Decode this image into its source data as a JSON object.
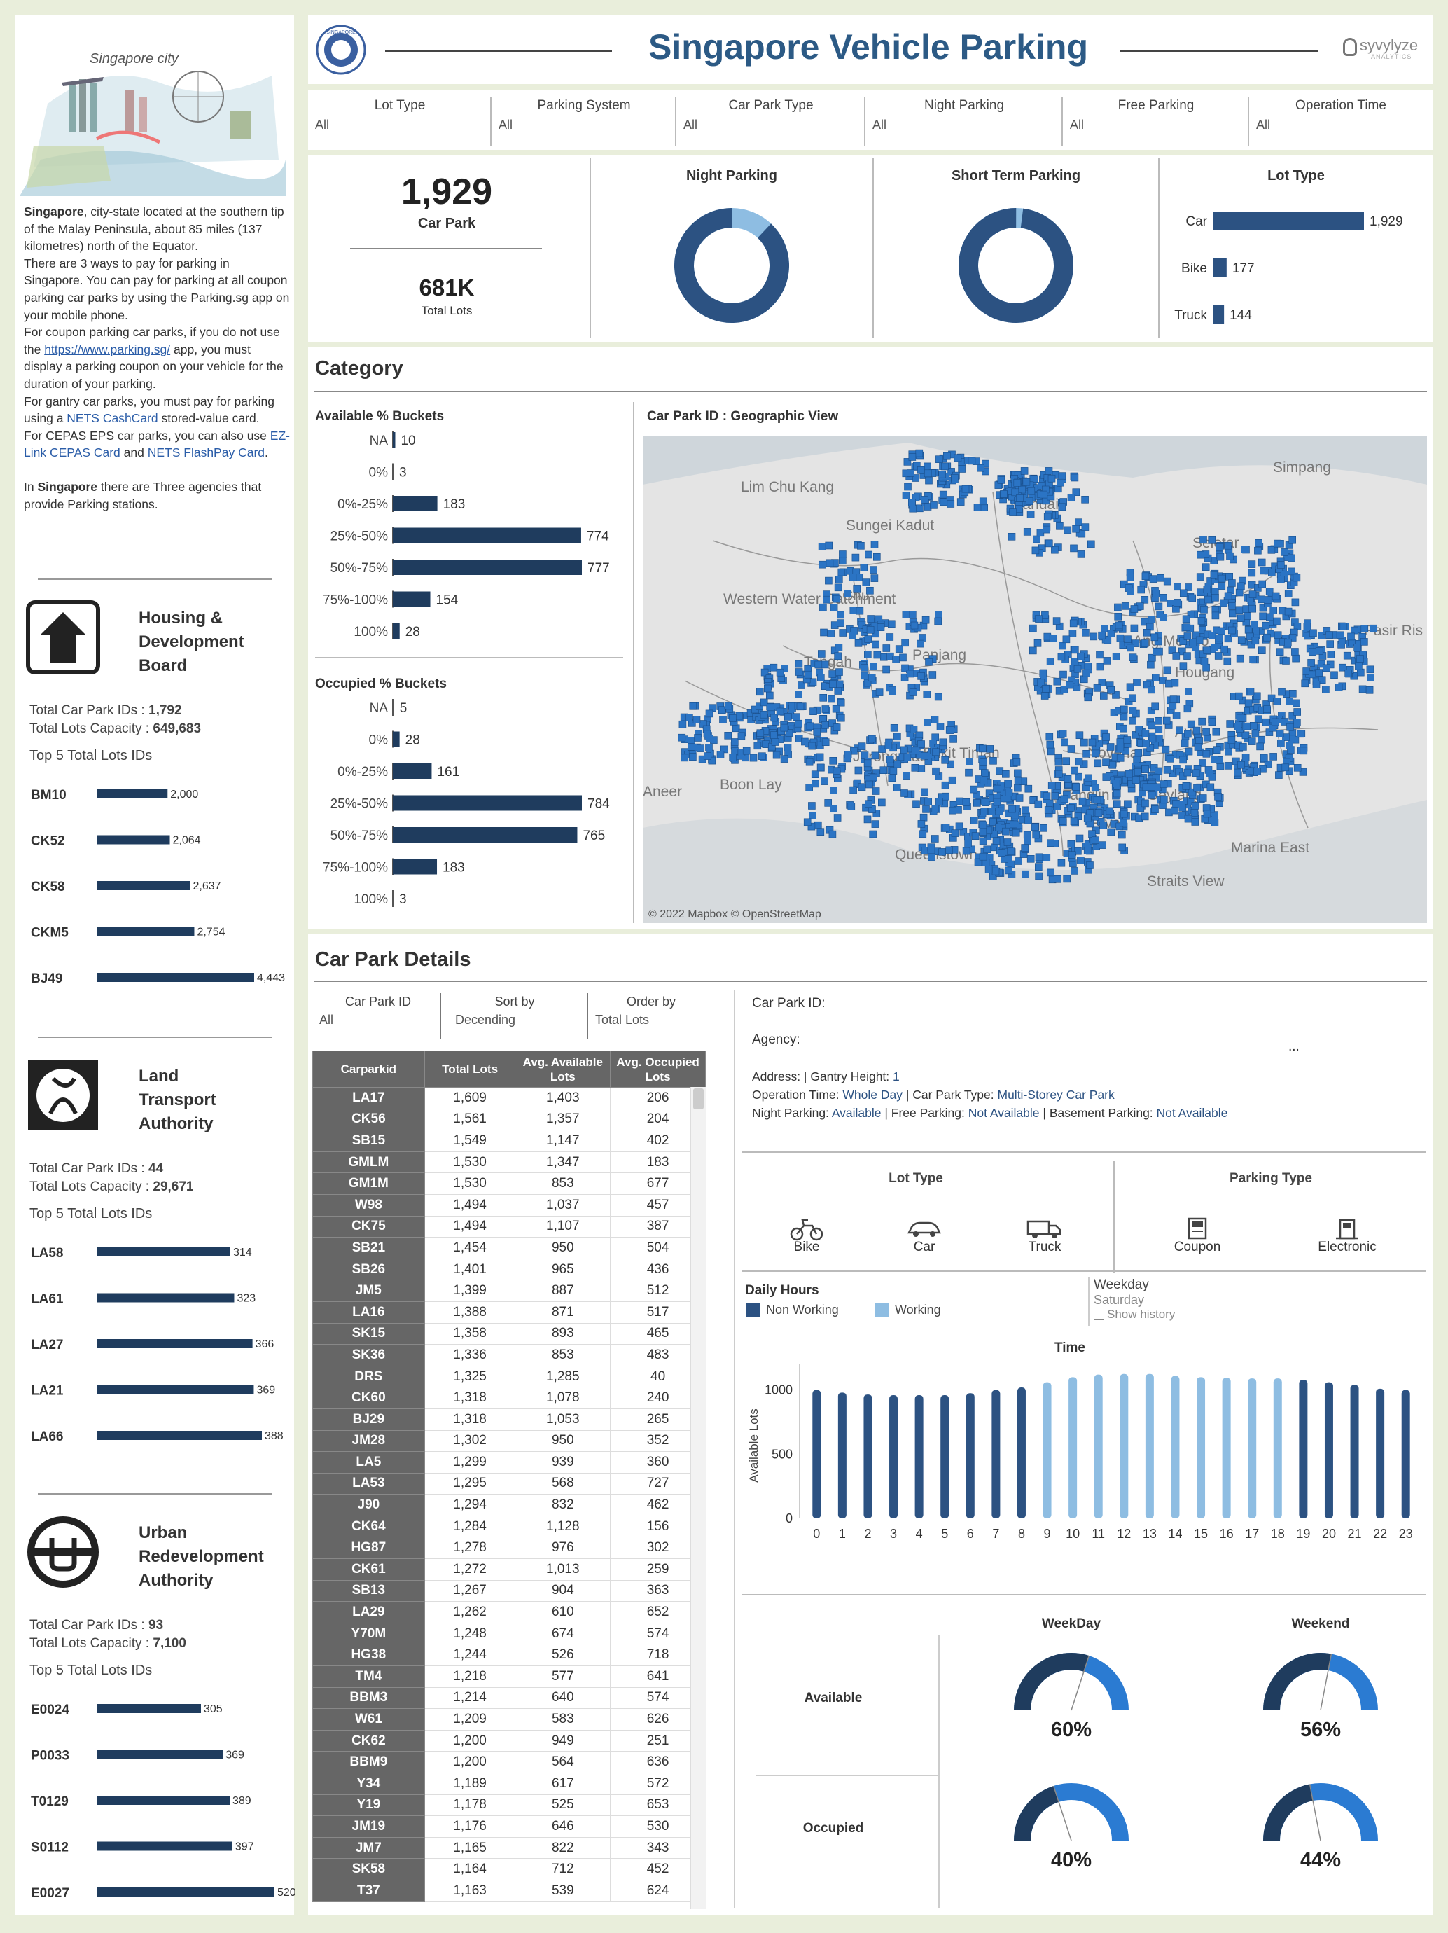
{
  "header": {
    "title": "Singapore Vehicle Parking",
    "brand": "syvylyze",
    "brand_sub": "ANALYTICS",
    "seal_text": "SINGAPORE"
  },
  "colors": {
    "accent": "#2c5282",
    "light": "#8ebde2",
    "map_dot": "#2b74c4",
    "bar_dark": "#1f3c5e"
  },
  "left": {
    "image_caption": "Singapore city",
    "intro_city": "Singapore",
    "intro_1": ", city-state located at the southern tip of the Malay Peninsula, about 85 miles (137 kilometres) north of the Equator.",
    "intro_2": "There are 3 ways to pay for parking in Singapore. You can pay for parking at all coupon parking car parks by using the Parking.sg app on your mobile phone.",
    "intro_3a": "For coupon parking car parks, if you do not use the ",
    "intro_3_link": "https://www.parking.sg/",
    "intro_3b": " app, you must display a parking coupon on your vehicle for the duration of your parking.",
    "intro_4a": "For gantry car parks, you must pay for parking using a ",
    "intro_4_link": "NETS CashCard",
    "intro_4b": " stored-value card.",
    "intro_5": "For CEPAS EPS car parks, you can also use ",
    "intro_5_link1": "EZ-Link CEPAS Card",
    "intro_5_and": " and ",
    "intro_5_link2": "NETS FlashPay Card",
    "intro_5_end": ".",
    "intro_6a": "In ",
    "intro_6_city": "Singapore",
    "intro_6b": " there are Three agencies that provide Parking stations.",
    "total_ids_label": "Total Car Park IDs : ",
    "total_cap_label": "Total Lots Capacity : ",
    "top5_label": "Top 5 Total Lots IDs",
    "agencies": [
      {
        "name": "Housing & Development Board",
        "line1": "Housing &",
        "line2": "Development",
        "line3": "Board",
        "ids": "1,792",
        "capacity": "649,683",
        "top5": [
          {
            "id": "BM10",
            "value": 2000,
            "label": "2,000"
          },
          {
            "id": "CK52",
            "value": 2064,
            "label": "2,064"
          },
          {
            "id": "CK58",
            "value": 2637,
            "label": "2,637"
          },
          {
            "id": "CKM5",
            "value": 2754,
            "label": "2,754"
          },
          {
            "id": "BJ49",
            "value": 4443,
            "label": "4,443"
          }
        ]
      },
      {
        "name": "Land Transport Authority",
        "line1": "Land",
        "line2": "Transport",
        "line3": "Authority",
        "ids": "44",
        "capacity": "29,671",
        "top5": [
          {
            "id": "LA58",
            "value": 314,
            "label": "314"
          },
          {
            "id": "LA61",
            "value": 323,
            "label": "323"
          },
          {
            "id": "LA27",
            "value": 366,
            "label": "366"
          },
          {
            "id": "LA21",
            "value": 369,
            "label": "369"
          },
          {
            "id": "LA66",
            "value": 388,
            "label": "388"
          }
        ]
      },
      {
        "name": "Urban Redevelopment Authority",
        "line1": "Urban",
        "line2": "Redevelopment",
        "line3": "Authority",
        "ids": "93",
        "capacity": "7,100",
        "top5": [
          {
            "id": "E0024",
            "value": 305,
            "label": "305"
          },
          {
            "id": "P0033",
            "value": 369,
            "label": "369"
          },
          {
            "id": "T0129",
            "value": 389,
            "label": "389"
          },
          {
            "id": "S0112",
            "value": 397,
            "label": "397"
          },
          {
            "id": "E0027",
            "value": 520,
            "label": "520"
          }
        ]
      }
    ]
  },
  "filters": [
    {
      "label": "Lot Type",
      "value": "All"
    },
    {
      "label": "Parking System",
      "value": "All"
    },
    {
      "label": "Car Park Type",
      "value": "All"
    },
    {
      "label": "Night Parking",
      "value": "All"
    },
    {
      "label": "Free Parking",
      "value": "All"
    },
    {
      "label": "Operation Time",
      "value": "All"
    }
  ],
  "kpi": {
    "car_park_value": "1,929",
    "car_park_label": "Car Park",
    "lots_value": "681K",
    "lots_label": "Total Lots"
  },
  "donuts": [
    {
      "title": "Night Parking",
      "share": 0.88
    },
    {
      "title": "Short Term Parking",
      "share": 0.98
    }
  ],
  "lot_type": {
    "title": "Lot Type",
    "items": [
      {
        "name": "Car",
        "value": 1929,
        "label": "1,929"
      },
      {
        "name": "Bike",
        "value": 177,
        "label": "177"
      },
      {
        "name": "Truck",
        "value": 144,
        "label": "144"
      }
    ]
  },
  "category": {
    "title": "Category",
    "available_title": "Available % Buckets",
    "occupied_title": "Occupied % Buckets",
    "available": [
      {
        "b": "NA",
        "v": 10
      },
      {
        "b": "0%",
        "v": 3
      },
      {
        "b": "0%-25%",
        "v": 183
      },
      {
        "b": "25%-50%",
        "v": 774
      },
      {
        "b": "50%-75%",
        "v": 777
      },
      {
        "b": "75%-100%",
        "v": 154
      },
      {
        "b": "100%",
        "v": 28
      }
    ],
    "occupied": [
      {
        "b": "NA",
        "v": 5
      },
      {
        "b": "0%",
        "v": 28
      },
      {
        "b": "0%-25%",
        "v": 161
      },
      {
        "b": "25%-50%",
        "v": 784
      },
      {
        "b": "50%-75%",
        "v": 765
      },
      {
        "b": "75%-100%",
        "v": 183
      },
      {
        "b": "100%",
        "v": 3
      }
    ],
    "map_title": "Car Park ID : Geographic View",
    "map_credit": "© 2022 Mapbox © OpenStreetMap",
    "map_labels": [
      "Simpang",
      "Lim Chu Kang",
      "Mandai",
      "Sungei Kadut",
      "Seletar",
      "Western Water Catchment",
      "Chu",
      "Tengah",
      "Panjang",
      "Hougang",
      "Pasir Ris",
      "Jurong East",
      "Bukit Timah",
      "Novena",
      "Boon Lay",
      "Tanglin",
      "River",
      "Queenstown",
      "Marina East",
      "Straits View",
      "Ayoh",
      "Geylang",
      "Aneer",
      "Ang Mo Kio"
    ]
  },
  "details": {
    "title": "Car Park Details",
    "filters": [
      {
        "label": "Car Park ID",
        "value": "All"
      },
      {
        "label": "Sort by",
        "value": "Decending"
      },
      {
        "label": "Order by",
        "value": "Total Lots"
      }
    ],
    "columns": [
      "Carparkid",
      "Total Lots",
      "Avg. Available Lots",
      "Avg. Occupied Lots"
    ],
    "rows": [
      [
        "LA17",
        "1,609",
        "1,403",
        "206"
      ],
      [
        "CK56",
        "1,561",
        "1,357",
        "204"
      ],
      [
        "SB15",
        "1,549",
        "1,147",
        "402"
      ],
      [
        "GMLM",
        "1,530",
        "1,347",
        "183"
      ],
      [
        "GM1M",
        "1,530",
        "853",
        "677"
      ],
      [
        "W98",
        "1,494",
        "1,037",
        "457"
      ],
      [
        "CK75",
        "1,494",
        "1,107",
        "387"
      ],
      [
        "SB21",
        "1,454",
        "950",
        "504"
      ],
      [
        "SB26",
        "1,401",
        "965",
        "436"
      ],
      [
        "JM5",
        "1,399",
        "887",
        "512"
      ],
      [
        "LA16",
        "1,388",
        "871",
        "517"
      ],
      [
        "SK15",
        "1,358",
        "893",
        "465"
      ],
      [
        "SK36",
        "1,336",
        "853",
        "483"
      ],
      [
        "DRS",
        "1,325",
        "1,285",
        "40"
      ],
      [
        "CK60",
        "1,318",
        "1,078",
        "240"
      ],
      [
        "BJ29",
        "1,318",
        "1,053",
        "265"
      ],
      [
        "JM28",
        "1,302",
        "950",
        "352"
      ],
      [
        "LA5",
        "1,299",
        "939",
        "360"
      ],
      [
        "LA53",
        "1,295",
        "568",
        "727"
      ],
      [
        "J90",
        "1,294",
        "832",
        "462"
      ],
      [
        "CK64",
        "1,284",
        "1,128",
        "156"
      ],
      [
        "HG87",
        "1,278",
        "976",
        "302"
      ],
      [
        "CK61",
        "1,272",
        "1,013",
        "259"
      ],
      [
        "SB13",
        "1,267",
        "904",
        "363"
      ],
      [
        "LA29",
        "1,262",
        "610",
        "652"
      ],
      [
        "Y70M",
        "1,248",
        "674",
        "574"
      ],
      [
        "HG38",
        "1,244",
        "526",
        "718"
      ],
      [
        "TM4",
        "1,218",
        "577",
        "641"
      ],
      [
        "BBM3",
        "1,214",
        "640",
        "574"
      ],
      [
        "W61",
        "1,209",
        "583",
        "626"
      ],
      [
        "CK62",
        "1,200",
        "949",
        "251"
      ],
      [
        "BBM9",
        "1,200",
        "564",
        "636"
      ],
      [
        "Y34",
        "1,189",
        "617",
        "572"
      ],
      [
        "Y19",
        "1,178",
        "525",
        "653"
      ],
      [
        "JM19",
        "1,176",
        "646",
        "530"
      ],
      [
        "JM7",
        "1,165",
        "822",
        "343"
      ],
      [
        "SK58",
        "1,164",
        "712",
        "452"
      ],
      [
        "T37",
        "1,163",
        "539",
        "624"
      ]
    ],
    "car_park_id_label": "Car Park ID:",
    "agency_label": "Agency:",
    "ellipsis": "...",
    "address_line": {
      "a": "Address:  | Gantry Height: ",
      "gantry": "1"
    },
    "op_time_label": "Operation Time: ",
    "op_time": "Whole Day",
    "cp_type_label": " | Car Park Type: ",
    "cp_type": "Multi-Storey Car Park",
    "night_label": "Night Parking: ",
    "night": "Available",
    "free_label": " | Free Parking: ",
    "free": "Not Available",
    "base_label": " | Basement Parking: ",
    "base": "Not Available",
    "lot_type_title": "Lot Type",
    "parking_type_title": "Parking Type",
    "lot_icons": [
      {
        "label": "Bike",
        "icon": "motorbike-icon"
      },
      {
        "label": "Car",
        "icon": "car-icon"
      },
      {
        "label": "Truck",
        "icon": "truck-icon"
      }
    ],
    "parking_icons": [
      {
        "label": "Coupon",
        "icon": "coupon-icon"
      },
      {
        "label": "Electronic",
        "icon": "electronic-icon"
      }
    ],
    "daily_hours": "Daily Hours",
    "legend": [
      {
        "name": "Non Working",
        "color": "#2c5282"
      },
      {
        "name": "Working",
        "color": "#8ebde2"
      }
    ],
    "weekday_options": [
      "Weekday",
      "Saturday"
    ],
    "show_history": "Show history",
    "gauges": {
      "col1": "WeekDay",
      "col2": "Weekend",
      "row1": "Available",
      "row2": "Occupied",
      "vals": [
        [
          "60%",
          "56%"
        ],
        [
          "40%",
          "44%"
        ]
      ],
      "fracs": [
        [
          0.6,
          0.56
        ],
        [
          0.4,
          0.44
        ]
      ]
    }
  },
  "chart_data": {
    "type": "bar",
    "title": "Time",
    "xlabel": "",
    "ylabel": "Available Lots",
    "ylim": [
      0,
      1200
    ],
    "yticks": [
      0,
      500,
      1000
    ],
    "categories": [
      "0",
      "1",
      "2",
      "3",
      "4",
      "5",
      "6",
      "7",
      "8",
      "9",
      "10",
      "11",
      "12",
      "13",
      "14",
      "15",
      "16",
      "17",
      "18",
      "19",
      "20",
      "21",
      "22",
      "23"
    ],
    "values": [
      1000,
      980,
      965,
      960,
      960,
      960,
      975,
      1000,
      1020,
      1060,
      1100,
      1120,
      1125,
      1125,
      1110,
      1100,
      1095,
      1090,
      1090,
      1080,
      1060,
      1040,
      1010,
      1000
    ],
    "working": [
      false,
      false,
      false,
      false,
      false,
      false,
      false,
      false,
      false,
      true,
      true,
      true,
      true,
      true,
      true,
      true,
      true,
      true,
      true,
      false,
      false,
      false,
      false,
      false
    ],
    "series": [
      {
        "name": "Non Working"
      },
      {
        "name": "Working"
      }
    ]
  }
}
